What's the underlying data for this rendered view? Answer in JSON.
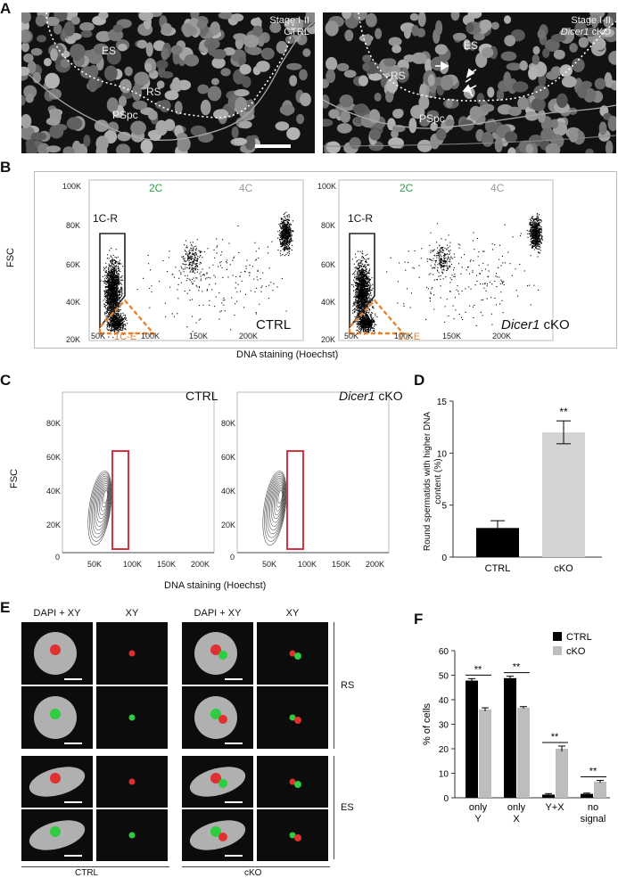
{
  "panels": {
    "A": "A",
    "B": "B",
    "C": "C",
    "D": "D",
    "E": "E",
    "F": "F"
  },
  "panelA": {
    "left": {
      "stage": "Stage I-II",
      "geno": "CTRL",
      "labels": [
        "ES",
        "RS",
        "PSpc"
      ]
    },
    "right": {
      "stage": "Stage I-II",
      "geno_italic": "Dicer1",
      "geno_rest": " cKO",
      "labels": [
        "ES",
        "RS",
        "PSpc"
      ]
    }
  },
  "panelB": {
    "ylabel": "FSC",
    "xlabel": "DNA staining (Hoechst)",
    "yticks": [
      "100K",
      "80K",
      "60K",
      "40K",
      "20K"
    ],
    "xticks": [
      "50K",
      "100K",
      "150K",
      "200K"
    ],
    "left": {
      "c2": "2C",
      "c4": "4C",
      "g1": "1C-R",
      "g2": "1C-E",
      "geno": "CTRL"
    },
    "right": {
      "c2": "2C",
      "c4": "4C",
      "g1": "1C-R",
      "g2": "1C-E",
      "geno_italic": "Dicer1",
      "geno_rest": " cKO"
    },
    "colors": {
      "green": "#2e9e4a",
      "grey": "#9a9a9a",
      "orange": "#e8822e"
    }
  },
  "panelC": {
    "ylabel": "FSC",
    "xlabel": "DNA staining (Hoechst)",
    "yticks": [
      "80K",
      "60K",
      "40K",
      "20K",
      "0"
    ],
    "xticks": [
      "50K",
      "100K",
      "150K",
      "200K"
    ],
    "left": {
      "geno": "CTRL"
    },
    "right": {
      "geno_italic": "Dicer1",
      "geno_rest": " cKO"
    },
    "gate_color": "#d9333f"
  },
  "panelE": {
    "col_headers": [
      "DAPI + XY",
      "XY",
      "DAPI + XY",
      "XY"
    ],
    "row_labels": [
      "RS",
      "ES"
    ],
    "group_labels": [
      "CTRL",
      "cKO"
    ]
  },
  "chart_data": [
    {
      "type": "bar",
      "panel": "D",
      "categories": [
        "CTRL",
        "cKO"
      ],
      "values": [
        2.8,
        12.0
      ],
      "errors": [
        0.7,
        1.1
      ],
      "colors": [
        "#000000",
        "#d4d4d4"
      ],
      "significance": "**",
      "ylabel": "Round spermatids with higher DNA content (%)",
      "ylim": [
        0,
        15
      ],
      "yticks": [
        "0",
        "5",
        "10",
        "15"
      ]
    },
    {
      "type": "bar",
      "panel": "F",
      "categories": [
        "only Y",
        "only X",
        "Y+X",
        "no signal"
      ],
      "series": [
        {
          "name": "CTRL",
          "values": [
            47.8,
            48.8,
            1.3,
            1.6
          ],
          "errors": [
            0.8,
            0.8,
            0.4,
            0.3
          ],
          "color": "#000000"
        },
        {
          "name": "cKO",
          "values": [
            36.0,
            36.8,
            20.0,
            6.6
          ],
          "errors": [
            0.7,
            0.4,
            1.1,
            0.5
          ],
          "color": "#bdbdbd"
        }
      ],
      "significance": [
        "**",
        "**",
        "**",
        "**"
      ],
      "ylabel": "% of cells",
      "ylim": [
        0,
        60
      ],
      "yticks": [
        "0",
        "10",
        "20",
        "30",
        "40",
        "50",
        "60"
      ],
      "legend_placement": "top-right"
    }
  ]
}
